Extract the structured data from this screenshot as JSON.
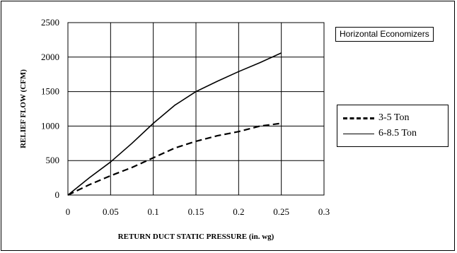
{
  "chart_data": {
    "type": "line",
    "title": "",
    "xlabel": "RETURN DUCT STATIC PRESSURE (in. wg)",
    "ylabel": "RELIEF FLOW (CFM)",
    "xlim": [
      0,
      0.3
    ],
    "ylim": [
      0,
      2500
    ],
    "x_ticks": [
      "0",
      "0.05",
      "0.1",
      "0.15",
      "0.2",
      "0.25",
      "0.3"
    ],
    "y_ticks": [
      "0",
      "500",
      "1000",
      "1500",
      "2000",
      "2500"
    ],
    "grid": true,
    "annotation": "Horizontal Economizers",
    "legend_position": "right",
    "series": [
      {
        "name": "3-5 Ton",
        "style": "dashed",
        "x": [
          0,
          0.025,
          0.05,
          0.075,
          0.1,
          0.125,
          0.15,
          0.175,
          0.2,
          0.225,
          0.25
        ],
        "y": [
          0,
          150,
          280,
          400,
          540,
          680,
          780,
          860,
          920,
          1000,
          1040
        ]
      },
      {
        "name": "6-8.5 Ton",
        "style": "solid",
        "x": [
          0,
          0.025,
          0.05,
          0.075,
          0.1,
          0.125,
          0.15,
          0.175,
          0.2,
          0.225,
          0.25
        ],
        "y": [
          0,
          250,
          480,
          750,
          1040,
          1300,
          1500,
          1650,
          1790,
          1920,
          2060
        ]
      }
    ]
  }
}
